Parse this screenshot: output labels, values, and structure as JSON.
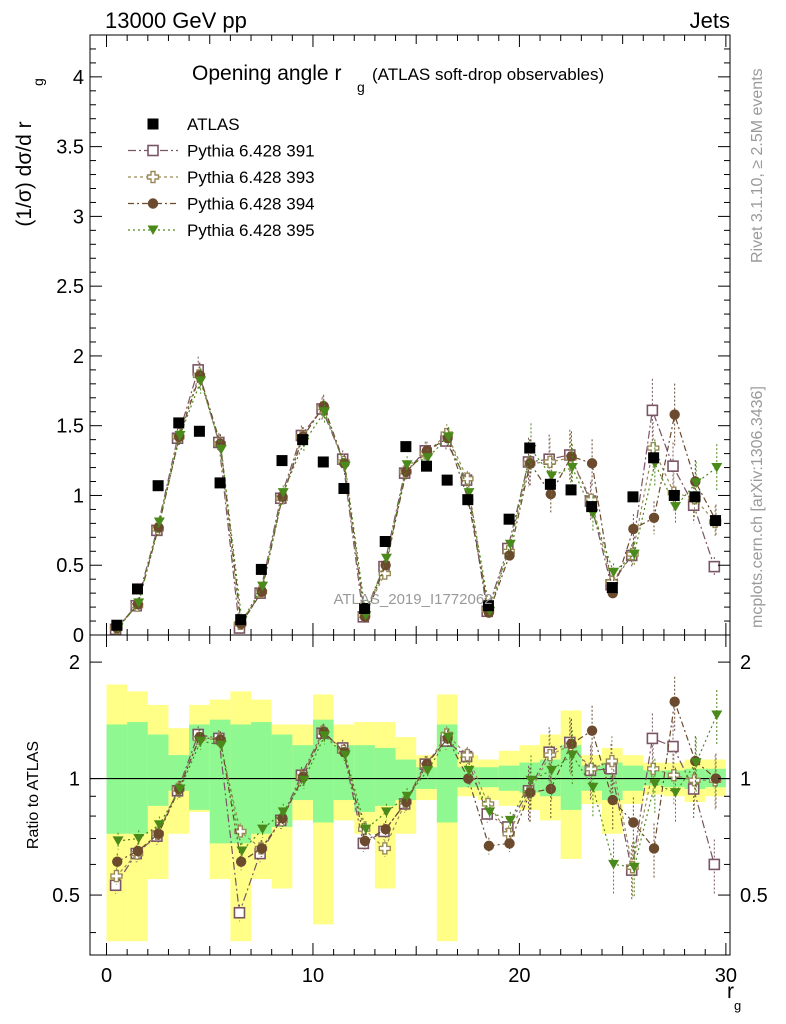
{
  "header": {
    "energy": "13000 GeV pp",
    "process": "Jets",
    "title_main": "Opening angle r",
    "title_sub": "g",
    "title_extra": "(ATLAS soft-drop observables)",
    "watermark": "ATLAS_2019_I1772062",
    "side_top": "Rivet 3.1.10, ≥ 2.5M events",
    "side_bottom": "mcplots.cern.ch [arXiv:1306.3436]"
  },
  "colors": {
    "atlas": "#000000",
    "s391": "#7a5566",
    "s393": "#9a8a58",
    "s394": "#6b4a2e",
    "s395": "#4a8a1a",
    "band_outer": "#ffff88",
    "band_inner": "#90f890"
  },
  "chart_data": [
    {
      "type": "scatter",
      "ylabel": "(1/σ) dσ/d r_g",
      "ylim": [
        0,
        4.3
      ],
      "xlim": [
        -0.8,
        30.2
      ],
      "yticks": [
        "0",
        "0.5",
        "1",
        "1.5",
        "2",
        "2.5",
        "3",
        "3.5",
        "4"
      ],
      "x": [
        0.5,
        1.5,
        2.5,
        3.5,
        4.5,
        5.5,
        6.5,
        7.5,
        8.5,
        9.5,
        10.5,
        11.5,
        12.5,
        13.5,
        14.5,
        15.5,
        16.5,
        17.5,
        18.5,
        19.5,
        20.5,
        21.5,
        22.5,
        23.5,
        24.5,
        25.5,
        26.5,
        27.5,
        28.5,
        29.5
      ],
      "legend": [
        "ATLAS",
        "Pythia 6.428 391",
        "Pythia 6.428 393",
        "Pythia 6.428 394",
        "Pythia 6.428 395"
      ],
      "series": [
        {
          "name": "ATLAS",
          "values": [
            0.07,
            0.33,
            1.07,
            1.52,
            1.46,
            1.09,
            0.11,
            0.47,
            1.25,
            1.4,
            1.24,
            1.05,
            0.19,
            0.67,
            1.35,
            1.21,
            1.11,
            0.97,
            0.21,
            0.83,
            1.34,
            1.08,
            1.04,
            0.92,
            0.34,
            0.99,
            1.27,
            1.0,
            0.99,
            0.82
          ]
        },
        {
          "name": "Pythia 6.428 391",
          "values": [
            0.04,
            0.21,
            0.75,
            1.41,
            1.9,
            1.38,
            0.05,
            0.3,
            0.98,
            1.43,
            1.62,
            1.26,
            0.13,
            0.49,
            1.16,
            1.32,
            1.39,
            1.11,
            0.17,
            0.62,
            1.24,
            1.26,
            1.29,
            0.96,
            0.36,
            0.57,
            1.61,
            1.21,
            0.93,
            0.49
          ]
        },
        {
          "name": "Pythia 6.428 393",
          "values": [
            0.05,
            0.21,
            0.76,
            1.42,
            1.86,
            1.37,
            0.08,
            0.31,
            0.98,
            1.42,
            1.63,
            1.24,
            0.14,
            0.44,
            1.17,
            1.3,
            1.44,
            1.12,
            0.18,
            0.6,
            1.23,
            1.24,
            1.27,
            0.97,
            0.38,
            0.58,
            1.34,
            1.02,
            0.98,
            0.81
          ]
        },
        {
          "name": "Pythia 6.428 394",
          "values": [
            0.05,
            0.22,
            0.77,
            1.42,
            1.86,
            1.37,
            0.08,
            0.31,
            0.99,
            1.42,
            1.64,
            1.23,
            0.13,
            0.5,
            1.17,
            1.32,
            1.41,
            0.97,
            0.16,
            0.57,
            1.23,
            1.01,
            1.28,
            1.23,
            0.3,
            0.76,
            0.84,
            1.58,
            1.1,
            0.82
          ]
        },
        {
          "name": "Pythia 6.428 395",
          "values": [
            0.05,
            0.23,
            0.81,
            1.43,
            1.82,
            1.33,
            0.1,
            0.35,
            1.02,
            1.38,
            1.6,
            1.21,
            0.14,
            0.55,
            1.22,
            1.27,
            1.42,
            1.02,
            0.17,
            0.65,
            1.33,
            1.14,
            1.2,
            0.87,
            0.45,
            0.58,
            1.23,
            0.92,
            1.09,
            1.2
          ]
        }
      ]
    },
    {
      "type": "scatter",
      "ylabel": "Ratio to ATLAS",
      "xlabel": "r_g",
      "ylim": [
        0.35,
        2.35
      ],
      "yscale": "log",
      "xticks": [
        "0",
        "10",
        "20",
        "30"
      ],
      "yticks": [
        "0.5",
        "1",
        "2"
      ],
      "band_outer": [
        [
          0.38,
          1.75
        ],
        [
          0.38,
          1.68
        ],
        [
          0.55,
          1.55
        ],
        [
          0.72,
          1.35
        ],
        [
          0.82,
          1.55
        ],
        [
          0.55,
          1.6
        ],
        [
          0.38,
          1.68
        ],
        [
          0.55,
          1.6
        ],
        [
          0.52,
          1.38
        ],
        [
          0.78,
          1.38
        ],
        [
          0.42,
          1.65
        ],
        [
          0.78,
          1.38
        ],
        [
          0.72,
          1.4
        ],
        [
          0.52,
          1.4
        ],
        [
          0.72,
          1.28
        ],
        [
          0.88,
          1.15
        ],
        [
          0.38,
          1.65
        ],
        [
          0.9,
          1.15
        ],
        [
          0.88,
          1.12
        ],
        [
          0.85,
          1.18
        ],
        [
          0.83,
          1.22
        ],
        [
          0.78,
          1.3
        ],
        [
          0.62,
          1.5
        ],
        [
          0.86,
          1.15
        ],
        [
          0.72,
          1.2
        ],
        [
          0.86,
          1.15
        ],
        [
          0.91,
          1.1
        ],
        [
          0.9,
          1.1
        ],
        [
          0.87,
          1.12
        ],
        [
          0.9,
          1.12
        ]
      ],
      "band_inner": [
        [
          0.72,
          1.38
        ],
        [
          0.72,
          1.4
        ],
        [
          0.85,
          1.3
        ],
        [
          0.93,
          1.15
        ],
        [
          0.83,
          1.38
        ],
        [
          0.68,
          1.42
        ],
        [
          0.68,
          1.38
        ],
        [
          0.72,
          1.4
        ],
        [
          0.75,
          1.3
        ],
        [
          0.88,
          1.22
        ],
        [
          0.77,
          1.42
        ],
        [
          0.88,
          1.22
        ],
        [
          0.82,
          1.22
        ],
        [
          0.85,
          1.2
        ],
        [
          0.88,
          1.12
        ],
        [
          0.94,
          1.07
        ],
        [
          0.77,
          1.38
        ],
        [
          0.95,
          1.07
        ],
        [
          0.95,
          1.07
        ],
        [
          0.93,
          1.08
        ],
        [
          0.92,
          1.1
        ],
        [
          0.9,
          1.12
        ],
        [
          0.83,
          1.22
        ],
        [
          0.93,
          1.08
        ],
        [
          0.88,
          1.1
        ],
        [
          0.93,
          1.08
        ],
        [
          0.96,
          1.05
        ],
        [
          0.95,
          1.05
        ],
        [
          0.94,
          1.06
        ],
        [
          0.95,
          1.06
        ]
      ],
      "series": [
        {
          "name": "Pythia 6.428 391",
          "values": [
            0.53,
            0.64,
            0.71,
            0.93,
            1.3,
            1.27,
            0.45,
            0.64,
            0.78,
            1.02,
            1.31,
            1.2,
            0.68,
            0.73,
            0.86,
            1.09,
            1.25,
            1.14,
            0.81,
            0.75,
            0.93,
            1.17,
            1.24,
            1.05,
            1.06,
            0.58,
            1.27,
            1.21,
            0.94,
            0.6
          ]
        },
        {
          "name": "Pythia 6.428 393",
          "values": [
            0.56,
            0.64,
            0.72,
            0.94,
            1.27,
            1.26,
            0.73,
            0.66,
            0.78,
            1.01,
            1.32,
            1.18,
            0.74,
            0.66,
            0.87,
            1.08,
            1.3,
            1.15,
            0.86,
            0.72,
            0.92,
            1.15,
            1.22,
            1.06,
            1.11,
            0.59,
            1.06,
            1.02,
            0.99,
            0.99
          ]
        },
        {
          "name": "Pythia 6.428 394",
          "values": [
            0.61,
            0.65,
            0.72,
            0.94,
            1.28,
            1.26,
            0.61,
            0.66,
            0.79,
            1.01,
            1.32,
            1.17,
            0.69,
            0.74,
            0.87,
            1.09,
            1.27,
            1.0,
            0.67,
            0.68,
            0.92,
            0.94,
            1.23,
            1.33,
            0.88,
            0.77,
            0.66,
            1.58,
            1.11,
            1.0
          ]
        },
        {
          "name": "Pythia 6.428 395",
          "values": [
            0.69,
            0.7,
            0.76,
            0.94,
            1.25,
            1.22,
            0.65,
            0.74,
            0.82,
            0.99,
            1.29,
            1.15,
            0.74,
            0.82,
            0.9,
            1.05,
            1.28,
            1.05,
            0.82,
            0.78,
            0.99,
            1.05,
            1.15,
            0.95,
            0.6,
            0.59,
            0.97,
            0.92,
            1.1,
            1.46
          ]
        }
      ]
    }
  ]
}
